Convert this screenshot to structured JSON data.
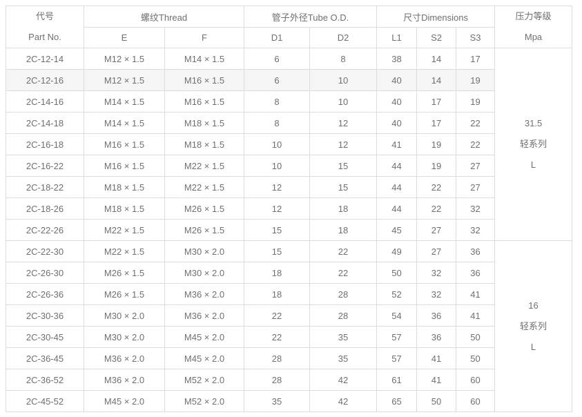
{
  "header": {
    "part_no_zh": "代号",
    "part_no_en": "Part No.",
    "thread_group": "螺纹Thread",
    "tube_od_group": "管子外径Tube O.D.",
    "dimensions_group": "尺寸Dimensions",
    "pressure_zh": "压力等级",
    "pressure_unit": "Mpa",
    "sub_columns": [
      "E",
      "F",
      "D1",
      "D2",
      "L1",
      "S2",
      "S3"
    ]
  },
  "highlighted_part_no": "2C-12-16",
  "groups": [
    {
      "pressure_lines": [
        "31.5",
        "轻系列",
        "L"
      ],
      "rows": [
        [
          "2C-12-14",
          "M12 × 1.5",
          "M14 × 1.5",
          "6",
          "8",
          "38",
          "14",
          "17"
        ],
        [
          "2C-12-16",
          "M12 × 1.5",
          "M16 × 1.5",
          "6",
          "10",
          "40",
          "14",
          "19"
        ],
        [
          "2C-14-16",
          "M14 × 1.5",
          "M16 × 1.5",
          "8",
          "10",
          "40",
          "17",
          "19"
        ],
        [
          "2C-14-18",
          "M14 × 1.5",
          "M18 × 1.5",
          "8",
          "12",
          "40",
          "17",
          "22"
        ],
        [
          "2C-16-18",
          "M16 × 1.5",
          "M18 × 1.5",
          "10",
          "12",
          "41",
          "19",
          "22"
        ],
        [
          "2C-16-22",
          "M16 × 1.5",
          "M22 × 1.5",
          "10",
          "15",
          "44",
          "19",
          "27"
        ],
        [
          "2C-18-22",
          "M18 × 1.5",
          "M22 × 1.5",
          "12",
          "15",
          "44",
          "22",
          "27"
        ],
        [
          "2C-18-26",
          "M18 × 1.5",
          "M26 × 1.5",
          "12",
          "18",
          "44",
          "22",
          "32"
        ],
        [
          "2C-22-26",
          "M22 × 1.5",
          "M26 × 1.5",
          "15",
          "18",
          "45",
          "27",
          "32"
        ]
      ]
    },
    {
      "pressure_lines": [
        "16",
        "轻系列",
        "L"
      ],
      "rows": [
        [
          "2C-22-30",
          "M22 × 1.5",
          "M30 × 2.0",
          "15",
          "22",
          "49",
          "27",
          "36"
        ],
        [
          "2C-26-30",
          "M26 × 1.5",
          "M30 × 2.0",
          "18",
          "22",
          "50",
          "32",
          "36"
        ],
        [
          "2C-26-36",
          "M26 × 1.5",
          "M36 × 2.0",
          "18",
          "28",
          "52",
          "32",
          "41"
        ],
        [
          "2C-30-36",
          "M30 × 2.0",
          "M36 × 2.0",
          "22",
          "28",
          "54",
          "36",
          "41"
        ],
        [
          "2C-30-45",
          "M30 × 2.0",
          "M45 × 2.0",
          "22",
          "35",
          "57",
          "36",
          "50"
        ],
        [
          "2C-36-45",
          "M36 × 2.0",
          "M45 × 2.0",
          "28",
          "35",
          "57",
          "41",
          "50"
        ],
        [
          "2C-36-52",
          "M36 × 2.0",
          "M52 × 2.0",
          "28",
          "42",
          "61",
          "41",
          "60"
        ],
        [
          "2C-45-52",
          "M45 × 2.0",
          "M52 × 2.0",
          "35",
          "42",
          "65",
          "50",
          "60"
        ]
      ]
    }
  ],
  "colors": {
    "text": "#6f6f6f",
    "border": "#dcdcdc",
    "row-hover": "#f5f5f5",
    "header-bg": "#ffffff"
  }
}
